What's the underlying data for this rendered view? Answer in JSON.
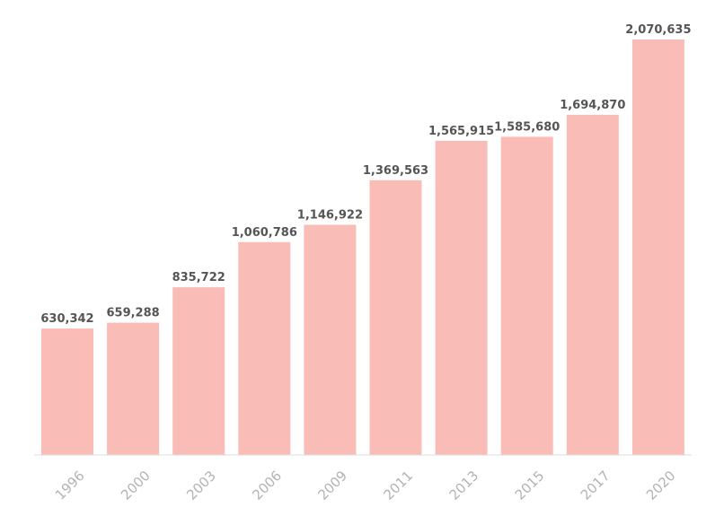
{
  "chart_data": {
    "type": "bar",
    "title": "",
    "xlabel": "",
    "ylabel": "",
    "categories": [
      "1996",
      "2000",
      "2003",
      "2006",
      "2009",
      "2011",
      "2013",
      "2015",
      "2017",
      "2020"
    ],
    "values": [
      630342,
      659288,
      835722,
      1060786,
      1146922,
      1369563,
      1565915,
      1585680,
      1694870,
      2070635
    ],
    "value_labels": [
      "630,342",
      "659,288",
      "835,722",
      "1,060,786",
      "1,146,922",
      "1,369,563",
      "1,565,915",
      "1,585,680",
      "1,694,870",
      "2,070,635"
    ],
    "ylim": [
      0,
      2070635
    ],
    "grid": false,
    "legend": "none",
    "bar_color": "#f9bcb6",
    "label_color": "#555555",
    "tick_color": "#b3b3b3"
  }
}
